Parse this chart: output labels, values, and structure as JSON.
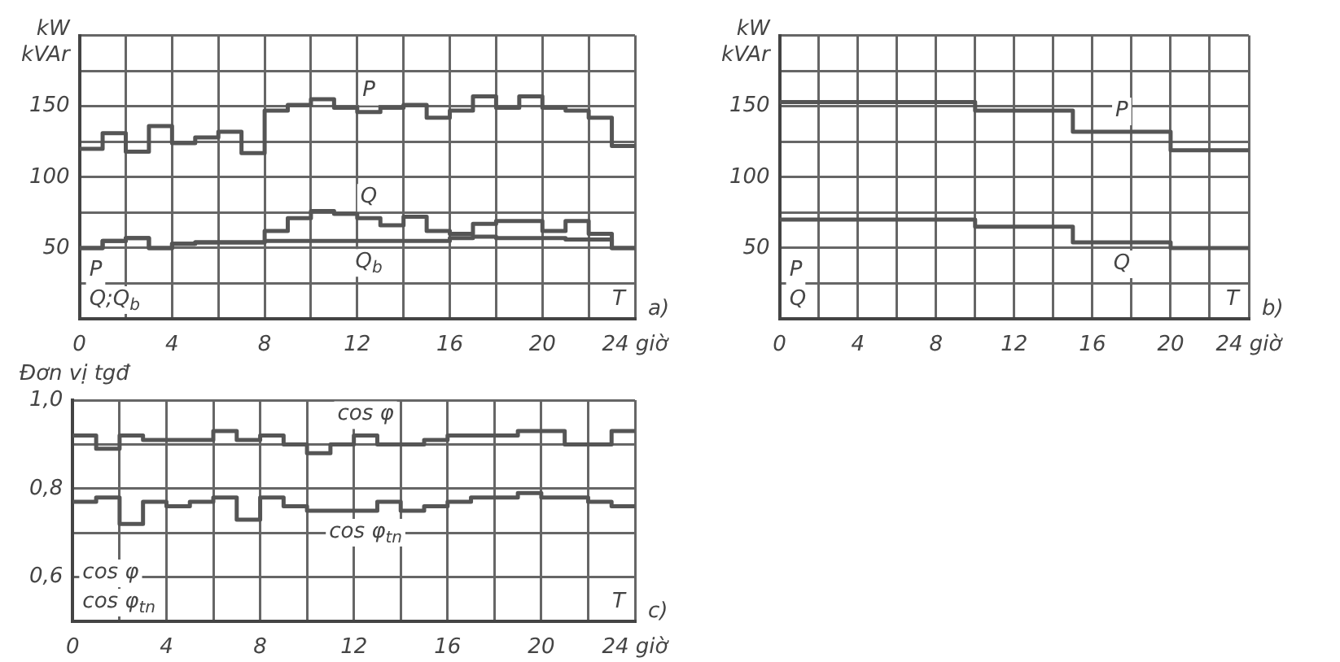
{
  "chart_data": [
    {
      "type": "step",
      "ylabel": "kW kVAr",
      "x": [
        0,
        1,
        2,
        3,
        4,
        5,
        6,
        7,
        8,
        9,
        10,
        11,
        12,
        13,
        14,
        15,
        16,
        17,
        18,
        19,
        20,
        21,
        22,
        23,
        24
      ],
      "xlim": [
        0,
        24
      ],
      "ylim": [
        0,
        200
      ],
      "xticks": [
        0,
        {
          "value": 2,
          "label": null
        },
        4,
        {
          "value": 6,
          "label": null
        },
        8,
        {
          "value": 10,
          "label": null
        },
        12,
        {
          "value": 14,
          "label": null
        },
        16,
        {
          "value": 18,
          "label": null
        },
        20,
        {
          "value": 22,
          "label": null
        },
        {
          "value": 24,
          "label": "24 giờ"
        }
      ],
      "yticks": [
        {
          "value": 0,
          "label": null
        },
        {
          "value": 25,
          "label": null
        },
        50,
        {
          "value": 75,
          "label": null
        },
        100,
        {
          "value": 125,
          "label": null
        },
        150,
        {
          "value": 175,
          "label": null
        },
        {
          "value": 200,
          "label": null
        }
      ],
      "grid": true,
      "legend": false,
      "annotations": [
        "P",
        "Q;Q$_{b}$",
        "T",
        "a)"
      ],
      "series": [
        {
          "name": "P",
          "color": "#555555",
          "values": [
            120,
            131,
            118,
            136,
            124,
            128,
            132,
            117,
            147,
            151,
            155,
            149,
            146,
            149,
            151,
            142,
            147,
            157,
            149,
            157,
            149,
            147,
            142,
            122,
            122
          ]
        },
        {
          "name": "Q",
          "color": "#555555",
          "values": [
            50,
            55,
            57,
            50,
            53,
            54,
            54,
            54,
            62,
            71,
            76,
            74,
            71,
            66,
            72,
            62,
            60,
            67,
            69,
            69,
            62,
            69,
            60,
            50,
            50
          ]
        },
        {
          "name": "Q$_{b}$",
          "color": "#555555",
          "values": [
            50,
            55,
            57,
            50,
            53,
            54,
            54,
            54,
            55,
            55,
            55,
            55,
            55,
            55,
            55,
            55,
            57,
            58,
            57,
            57,
            57,
            56,
            56,
            50,
            50
          ]
        }
      ]
    },
    {
      "type": "step",
      "ylabel": "kW kVAr",
      "xlim": [
        0,
        24
      ],
      "ylim": [
        0,
        200
      ],
      "xticks": [
        0,
        {
          "value": 2,
          "label": null
        },
        4,
        {
          "value": 6,
          "label": null
        },
        8,
        {
          "value": 10,
          "label": null
        },
        12,
        {
          "value": 14,
          "label": null
        },
        16,
        {
          "value": 18,
          "label": null
        },
        20,
        {
          "value": 22,
          "label": null
        },
        {
          "value": 24,
          "label": "24 giờ"
        }
      ],
      "yticks": [
        {
          "value": 0,
          "label": null
        },
        {
          "value": 25,
          "label": null
        },
        50,
        {
          "value": 75,
          "label": null
        },
        100,
        {
          "value": 125,
          "label": null
        },
        150,
        {
          "value": 175,
          "label": null
        },
        {
          "value": 200,
          "label": null
        }
      ],
      "grid": true,
      "legend": false,
      "annotations": [
        "P",
        "Q",
        "T",
        "b)"
      ],
      "series": [
        {
          "name": "P",
          "color": "#555555",
          "x": [
            0,
            10,
            15,
            20,
            24
          ],
          "values": [
            153,
            147,
            132,
            119,
            119
          ]
        },
        {
          "name": "Q",
          "color": "#555555",
          "x": [
            0,
            10,
            15,
            20,
            24
          ],
          "values": [
            70,
            65,
            54,
            50,
            50
          ]
        }
      ]
    },
    {
      "type": "step",
      "ylabel": "Đơn vị tgđ",
      "x": [
        0,
        1,
        2,
        3,
        4,
        5,
        6,
        7,
        8,
        9,
        10,
        11,
        12,
        13,
        14,
        15,
        16,
        17,
        18,
        19,
        20,
        21,
        22,
        23,
        24
      ],
      "xlim": [
        0,
        24
      ],
      "ylim": [
        0.5,
        1.0
      ],
      "xticks": [
        0,
        {
          "value": 2,
          "label": null
        },
        4,
        {
          "value": 6,
          "label": null
        },
        8,
        {
          "value": 10,
          "label": null
        },
        12,
        {
          "value": 14,
          "label": null
        },
        16,
        {
          "value": 18,
          "label": null
        },
        20,
        {
          "value": 22,
          "label": null
        },
        {
          "value": 24,
          "label": "24 giờ"
        }
      ],
      "yticks": [
        {
          "value": 0.5,
          "label": null
        },
        {
          "value": 0.6,
          "label": "0,6"
        },
        {
          "value": 0.7,
          "label": null
        },
        {
          "value": 0.8,
          "label": "0,8"
        },
        {
          "value": 0.9,
          "label": null
        },
        {
          "value": 1.0,
          "label": "1,0"
        }
      ],
      "grid": true,
      "legend": false,
      "annotations": [
        "cos φ",
        "cos φ$_{tn}$",
        "T",
        "c)"
      ],
      "series": [
        {
          "name": "cos φ",
          "color": "#555555",
          "values": [
            0.92,
            0.89,
            0.92,
            0.91,
            0.91,
            0.91,
            0.93,
            0.91,
            0.92,
            0.9,
            0.88,
            0.9,
            0.92,
            0.9,
            0.9,
            0.91,
            0.92,
            0.92,
            0.92,
            0.93,
            0.93,
            0.9,
            0.9,
            0.93,
            0.93
          ]
        },
        {
          "name": "cos φ$_{tn}$",
          "color": "#555555",
          "values": [
            0.77,
            0.78,
            0.72,
            0.77,
            0.76,
            0.77,
            0.78,
            0.73,
            0.78,
            0.76,
            0.75,
            0.75,
            0.75,
            0.77,
            0.75,
            0.76,
            0.77,
            0.78,
            0.78,
            0.79,
            0.78,
            0.78,
            0.77,
            0.76,
            0.76
          ]
        }
      ]
    }
  ]
}
